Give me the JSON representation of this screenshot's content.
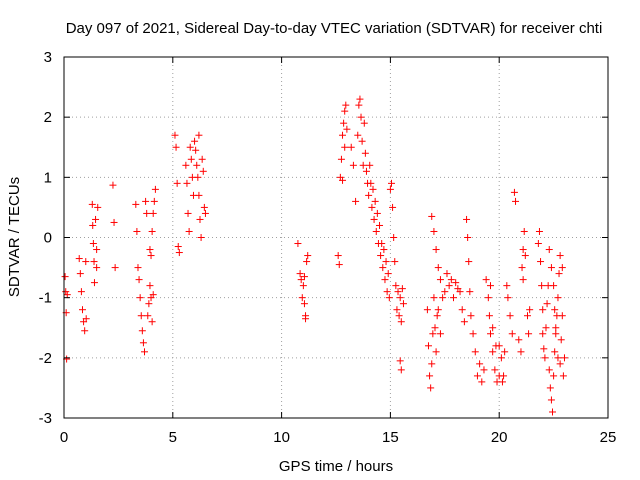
{
  "chart_data": {
    "type": "scatter",
    "title": "Day 097 of 2021, Sidereal Day-to-day VTEC variation (SDTVAR) for receiver chti",
    "xlabel": "GPS time / hours",
    "ylabel": "SDTVAR / TECUs",
    "xlim": [
      0,
      25
    ],
    "ylim": [
      -3,
      3
    ],
    "xticks": [
      0,
      5,
      10,
      15,
      20,
      25
    ],
    "yticks": [
      -3,
      -2,
      -1,
      0,
      1,
      2,
      3
    ],
    "grid": true,
    "marker": "+",
    "colors": {
      "points": "#ff0000",
      "grid": "#a0a0a0",
      "axes": "#000000"
    },
    "series": [
      {
        "name": "SDTVAR",
        "points": [
          [
            0.05,
            -0.65
          ],
          [
            0.08,
            -0.9
          ],
          [
            0.1,
            -1.25
          ],
          [
            0.12,
            -2.02
          ],
          [
            0.15,
            -0.95
          ],
          [
            0.7,
            -0.35
          ],
          [
            0.75,
            -0.6
          ],
          [
            0.8,
            -0.9
          ],
          [
            0.85,
            -1.2
          ],
          [
            0.9,
            -1.4
          ],
          [
            0.95,
            -1.55
          ],
          [
            1.0,
            -0.4
          ],
          [
            1.02,
            -1.35
          ],
          [
            1.3,
            0.55
          ],
          [
            1.32,
            0.2
          ],
          [
            1.35,
            -0.1
          ],
          [
            1.38,
            -0.4
          ],
          [
            1.4,
            -0.75
          ],
          [
            1.45,
            0.3
          ],
          [
            1.5,
            -0.2
          ],
          [
            1.55,
            0.5
          ],
          [
            1.5,
            -0.5
          ],
          [
            2.25,
            0.87
          ],
          [
            2.3,
            0.25
          ],
          [
            2.35,
            -0.5
          ],
          [
            3.3,
            0.55
          ],
          [
            3.35,
            0.1
          ],
          [
            3.4,
            -0.5
          ],
          [
            3.45,
            -0.7
          ],
          [
            3.5,
            -1.0
          ],
          [
            3.55,
            -1.3
          ],
          [
            3.6,
            -1.55
          ],
          [
            3.65,
            -1.75
          ],
          [
            3.7,
            -1.9
          ],
          [
            3.75,
            0.6
          ],
          [
            3.8,
            0.4
          ],
          [
            3.85,
            -1.3
          ],
          [
            3.9,
            -1.1
          ],
          [
            3.95,
            -0.8
          ],
          [
            4.0,
            -0.3
          ],
          [
            4.05,
            0.1
          ],
          [
            4.1,
            0.4
          ],
          [
            4.15,
            0.6
          ],
          [
            4.2,
            0.8
          ],
          [
            4.0,
            -1.0
          ],
          [
            4.05,
            -1.4
          ],
          [
            4.1,
            -0.95
          ],
          [
            3.95,
            -0.2
          ],
          [
            5.1,
            1.7
          ],
          [
            5.15,
            1.5
          ],
          [
            5.2,
            0.9
          ],
          [
            5.25,
            -0.15
          ],
          [
            5.3,
            -0.25
          ],
          [
            5.6,
            1.2
          ],
          [
            5.65,
            0.9
          ],
          [
            5.7,
            0.4
          ],
          [
            5.75,
            0.1
          ],
          [
            5.8,
            1.5
          ],
          [
            5.85,
            1.3
          ],
          [
            5.9,
            1.0
          ],
          [
            5.95,
            0.7
          ],
          [
            6.0,
            1.6
          ],
          [
            6.05,
            1.45
          ],
          [
            6.1,
            1.2
          ],
          [
            6.15,
            1.0
          ],
          [
            6.2,
            0.7
          ],
          [
            6.25,
            0.3
          ],
          [
            6.3,
            0.0
          ],
          [
            6.35,
            1.3
          ],
          [
            6.4,
            1.1
          ],
          [
            6.45,
            0.5
          ],
          [
            6.5,
            0.4
          ],
          [
            6.2,
            1.7
          ],
          [
            10.75,
            -0.1
          ],
          [
            10.85,
            -0.6
          ],
          [
            10.9,
            -0.7
          ],
          [
            10.95,
            -1.0
          ],
          [
            11.0,
            -0.8
          ],
          [
            11.05,
            -1.1
          ],
          [
            11.1,
            -1.3
          ],
          [
            11.15,
            -0.4
          ],
          [
            11.2,
            -0.3
          ],
          [
            11.05,
            -0.65
          ],
          [
            11.1,
            -1.35
          ],
          [
            12.6,
            -0.3
          ],
          [
            12.65,
            -0.45
          ],
          [
            12.7,
            1.0
          ],
          [
            12.75,
            1.3
          ],
          [
            12.8,
            1.7
          ],
          [
            12.85,
            1.9
          ],
          [
            12.9,
            2.1
          ],
          [
            12.95,
            2.2
          ],
          [
            12.8,
            0.95
          ],
          [
            12.9,
            1.5
          ],
          [
            13.0,
            1.8
          ],
          [
            13.2,
            1.5
          ],
          [
            13.3,
            1.2
          ],
          [
            13.4,
            0.6
          ],
          [
            13.5,
            1.7
          ],
          [
            13.55,
            2.2
          ],
          [
            13.6,
            2.3
          ],
          [
            13.65,
            2.0
          ],
          [
            13.7,
            1.6
          ],
          [
            13.75,
            1.2
          ],
          [
            13.8,
            1.9
          ],
          [
            13.85,
            1.4
          ],
          [
            13.9,
            1.1
          ],
          [
            13.95,
            0.9
          ],
          [
            14.0,
            0.7
          ],
          [
            14.05,
            1.2
          ],
          [
            14.1,
            0.9
          ],
          [
            14.15,
            0.5
          ],
          [
            14.2,
            0.8
          ],
          [
            14.25,
            0.3
          ],
          [
            14.3,
            0.6
          ],
          [
            14.35,
            0.1
          ],
          [
            14.4,
            0.4
          ],
          [
            14.45,
            -0.1
          ],
          [
            14.5,
            0.2
          ],
          [
            14.55,
            -0.3
          ],
          [
            14.6,
            -0.1
          ],
          [
            14.65,
            -0.5
          ],
          [
            14.7,
            -0.2
          ],
          [
            14.75,
            -0.7
          ],
          [
            14.8,
            -0.4
          ],
          [
            14.85,
            -0.9
          ],
          [
            14.9,
            -0.6
          ],
          [
            14.95,
            -1.0
          ],
          [
            15.0,
            0.8
          ],
          [
            15.05,
            0.9
          ],
          [
            15.1,
            0.5
          ],
          [
            15.15,
            0.0
          ],
          [
            15.2,
            -0.4
          ],
          [
            15.25,
            -0.8
          ],
          [
            15.3,
            -1.2
          ],
          [
            15.35,
            -0.9
          ],
          [
            15.4,
            -1.3
          ],
          [
            15.45,
            -1.0
          ],
          [
            15.5,
            -1.4
          ],
          [
            15.55,
            -0.85
          ],
          [
            15.6,
            -1.1
          ],
          [
            15.45,
            -2.05
          ],
          [
            15.5,
            -2.2
          ],
          [
            16.7,
            -1.2
          ],
          [
            16.75,
            -1.8
          ],
          [
            16.8,
            -2.3
          ],
          [
            16.85,
            -2.5
          ],
          [
            16.9,
            -2.1
          ],
          [
            16.95,
            -1.6
          ],
          [
            17.0,
            -1.0
          ],
          [
            17.05,
            -1.5
          ],
          [
            17.1,
            -1.9
          ],
          [
            17.15,
            -1.3
          ],
          [
            16.9,
            0.35
          ],
          [
            17.0,
            0.1
          ],
          [
            17.1,
            -0.2
          ],
          [
            17.2,
            -0.5
          ],
          [
            17.3,
            -0.7
          ],
          [
            17.2,
            -1.2
          ],
          [
            17.3,
            -1.6
          ],
          [
            17.4,
            -1.0
          ],
          [
            17.5,
            -0.9
          ],
          [
            17.6,
            -0.6
          ],
          [
            17.7,
            -0.8
          ],
          [
            17.8,
            -0.7
          ],
          [
            17.9,
            -1.0
          ],
          [
            18.0,
            -0.75
          ],
          [
            18.1,
            -0.85
          ],
          [
            18.2,
            -0.9
          ],
          [
            18.3,
            -1.2
          ],
          [
            18.4,
            -1.4
          ],
          [
            18.5,
            0.3
          ],
          [
            18.55,
            0.0
          ],
          [
            18.6,
            -0.4
          ],
          [
            18.65,
            -0.9
          ],
          [
            18.7,
            -1.3
          ],
          [
            18.8,
            -1.6
          ],
          [
            18.9,
            -1.9
          ],
          [
            19.0,
            -2.3
          ],
          [
            19.1,
            -2.1
          ],
          [
            19.2,
            -2.4
          ],
          [
            19.3,
            -2.2
          ],
          [
            19.4,
            -0.7
          ],
          [
            19.5,
            -1.0
          ],
          [
            19.55,
            -1.3
          ],
          [
            19.6,
            -1.6
          ],
          [
            19.7,
            -1.9
          ],
          [
            19.8,
            -2.2
          ],
          [
            19.9,
            -2.4
          ],
          [
            20.0,
            -2.3
          ],
          [
            19.6,
            -0.8
          ],
          [
            19.7,
            -1.5
          ],
          [
            19.85,
            -1.8
          ],
          [
            20.0,
            -1.8
          ],
          [
            20.1,
            -2.0
          ],
          [
            20.15,
            -2.4
          ],
          [
            20.2,
            -2.3
          ],
          [
            20.25,
            -1.9
          ],
          [
            20.35,
            -0.8
          ],
          [
            20.4,
            -1.0
          ],
          [
            20.5,
            -1.3
          ],
          [
            20.6,
            -1.6
          ],
          [
            20.7,
            0.75
          ],
          [
            20.75,
            0.6
          ],
          [
            20.9,
            -1.7
          ],
          [
            21.0,
            -1.9
          ],
          [
            21.05,
            -0.5
          ],
          [
            21.1,
            -0.2
          ],
          [
            21.15,
            0.1
          ],
          [
            21.2,
            -0.3
          ],
          [
            21.3,
            -1.3
          ],
          [
            21.35,
            -1.6
          ],
          [
            21.4,
            -1.2
          ],
          [
            21.1,
            -0.7
          ],
          [
            21.8,
            -0.1
          ],
          [
            21.85,
            0.1
          ],
          [
            21.9,
            -0.4
          ],
          [
            21.95,
            -0.8
          ],
          [
            22.0,
            -1.2
          ],
          [
            22.0,
            -1.6
          ],
          [
            22.05,
            -1.85
          ],
          [
            22.1,
            -2.0
          ],
          [
            22.15,
            -1.5
          ],
          [
            22.2,
            -1.1
          ],
          [
            22.25,
            -0.8
          ],
          [
            22.3,
            -2.2
          ],
          [
            22.35,
            -2.5
          ],
          [
            22.4,
            -2.7
          ],
          [
            22.45,
            -2.9
          ],
          [
            22.5,
            -2.3
          ],
          [
            22.55,
            -1.9
          ],
          [
            22.6,
            -1.6
          ],
          [
            22.65,
            -1.3
          ],
          [
            22.7,
            -1.0
          ],
          [
            22.75,
            -0.6
          ],
          [
            22.8,
            -0.3
          ],
          [
            22.3,
            -0.2
          ],
          [
            22.4,
            -0.5
          ],
          [
            22.5,
            -0.8
          ],
          [
            22.55,
            -1.2
          ],
          [
            22.6,
            -1.5
          ],
          [
            22.7,
            -2.0
          ],
          [
            22.8,
            -2.1
          ],
          [
            22.85,
            -1.7
          ],
          [
            22.9,
            -1.3
          ],
          [
            22.95,
            -2.3
          ],
          [
            23.0,
            -2.0
          ],
          [
            22.9,
            -0.5
          ]
        ]
      }
    ]
  }
}
